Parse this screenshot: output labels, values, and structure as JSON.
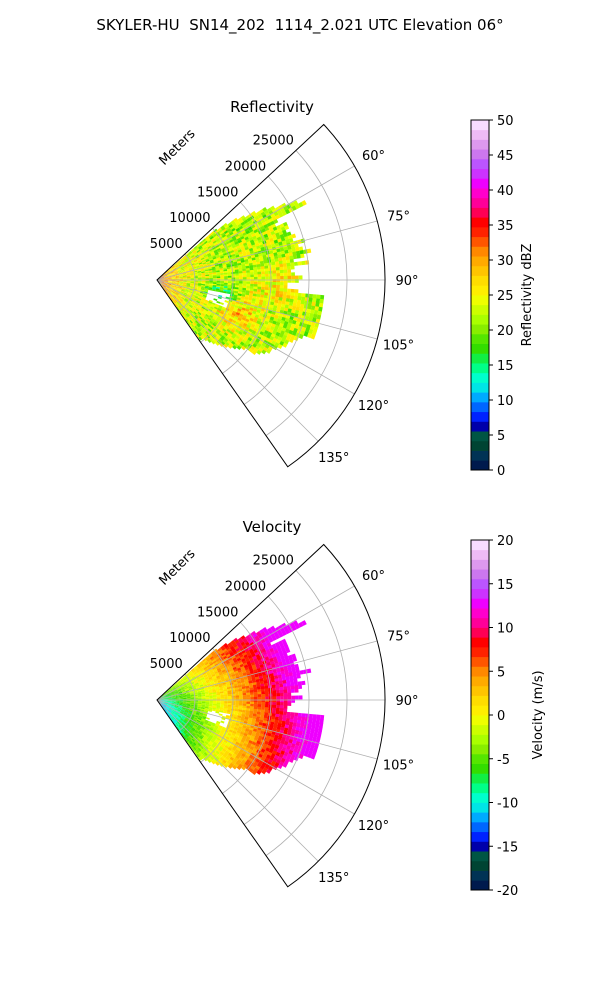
{
  "suptitle": "SKYLER-HU  SN14_202  1114_2.021 UTC Elevation 06°",
  "chart_data": [
    {
      "type": "heatmap",
      "projection": "polar-sector",
      "title": "Reflectivity",
      "radial_label": "Meters",
      "radial_ticks": [
        5000,
        10000,
        15000,
        20000,
        25000
      ],
      "radial_tick_labels": [
        "5000",
        "10000",
        "15000",
        "20000",
        "25000"
      ],
      "rmax": 30000,
      "angle_range_deg": [
        47,
        145
      ],
      "angle_ticks": [
        60,
        75,
        90,
        105,
        120,
        135
      ],
      "angle_tick_labels": [
        "60°",
        "75°",
        "90°",
        "105°",
        "120°",
        "135°"
      ],
      "grid": true,
      "colorbar": {
        "label": "Reflectivity dBZ",
        "min": 0,
        "max": 50,
        "ticks": [
          0,
          5,
          10,
          15,
          20,
          25,
          30,
          35,
          40,
          45,
          50
        ],
        "tick_labels": [
          "0",
          "5",
          "10",
          "15",
          "20",
          "25",
          "30",
          "35",
          "40",
          "45",
          "50"
        ],
        "colors": [
          "#001a4d",
          "#003355",
          "#004433",
          "#005544",
          "#0000aa",
          "#0022ff",
          "#0066ff",
          "#00aaff",
          "#00e5e5",
          "#00ffcc",
          "#00ff88",
          "#11ee44",
          "#33dd00",
          "#55e600",
          "#88ee00",
          "#aaff00",
          "#ccff00",
          "#eeff00",
          "#ffee00",
          "#ffdd00",
          "#ffc400",
          "#ffaa00",
          "#ff8800",
          "#ff5500",
          "#ff2200",
          "#ff0000",
          "#ff0055",
          "#ff0099",
          "#ff00cc",
          "#ee00ff",
          "#cc33ff",
          "#bb55ff",
          "#cc77ee",
          "#dd99ee",
          "#eebbf5",
          "#f8dcff"
        ]
      }
    },
    {
      "type": "heatmap",
      "projection": "polar-sector",
      "title": "Velocity",
      "radial_label": "Meters",
      "radial_ticks": [
        5000,
        10000,
        15000,
        20000,
        25000
      ],
      "radial_tick_labels": [
        "5000",
        "10000",
        "15000",
        "20000",
        "25000"
      ],
      "rmax": 30000,
      "angle_range_deg": [
        47,
        145
      ],
      "angle_ticks": [
        60,
        75,
        90,
        105,
        120,
        135
      ],
      "angle_tick_labels": [
        "60°",
        "75°",
        "90°",
        "105°",
        "120°",
        "135°"
      ],
      "grid": true,
      "colorbar": {
        "label": "Velocity (m/s)",
        "min": -20,
        "max": 20,
        "ticks": [
          -20,
          -15,
          -10,
          -5,
          0,
          5,
          10,
          15,
          20
        ],
        "tick_labels": [
          "-20",
          "-15",
          "-10",
          "-5",
          "0",
          "5",
          "10",
          "15",
          "20"
        ],
        "colors": [
          "#001a4d",
          "#003355",
          "#004433",
          "#005544",
          "#0000aa",
          "#0022ff",
          "#0066ff",
          "#00aaff",
          "#00e5e5",
          "#00ffcc",
          "#00ff88",
          "#11ee44",
          "#33dd00",
          "#55e600",
          "#88ee00",
          "#aaff00",
          "#ccff00",
          "#eeff00",
          "#ffee00",
          "#ffdd00",
          "#ffc400",
          "#ffaa00",
          "#ff8800",
          "#ff5500",
          "#ff2200",
          "#ff0000",
          "#ff0055",
          "#ff0099",
          "#ff00cc",
          "#ee00ff",
          "#cc33ff",
          "#bb55ff",
          "#cc77ee",
          "#dd99ee",
          "#eebbf5",
          "#f8dcff"
        ]
      }
    }
  ]
}
